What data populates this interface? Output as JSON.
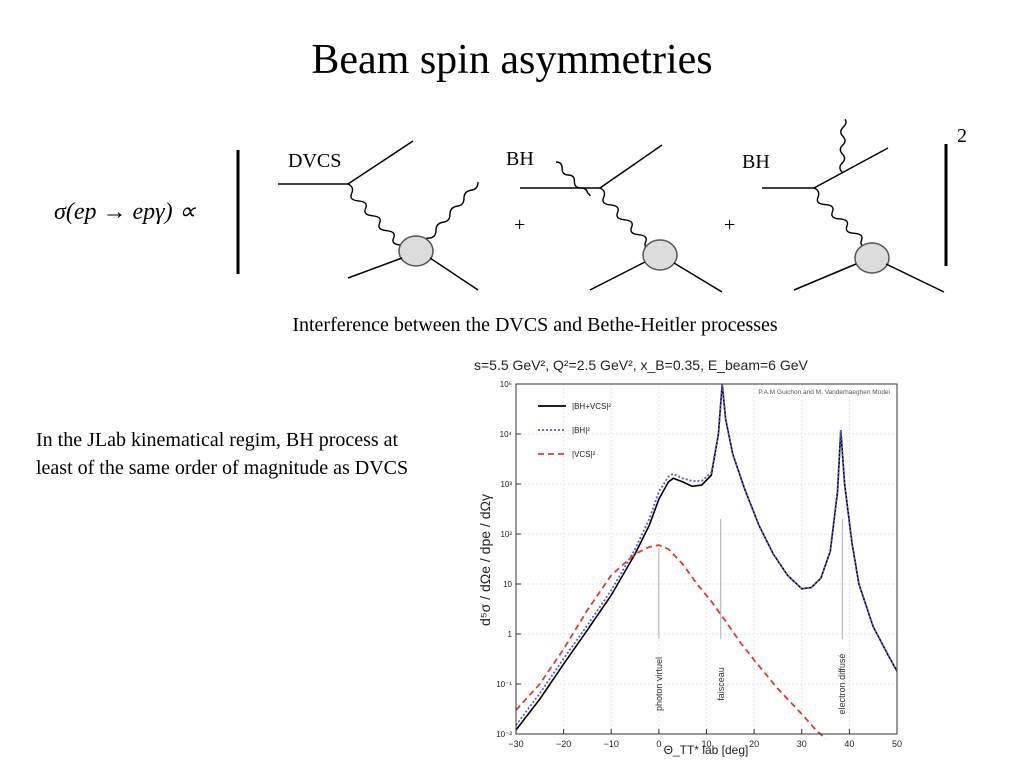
{
  "slide": {
    "title": "Beam spin asymmetries",
    "caption": "Interference between the DVCS and Bethe-Heitler processes",
    "note": "In the JLab kinematical regim, BH process at least of the same order of magnitude as DVCS"
  },
  "formula": {
    "text": "σ(ep → epγ) ∝",
    "exponent": "2",
    "plus": "+",
    "diagram_labels": [
      "DVCS",
      "BH",
      "BH"
    ]
  },
  "chart_data": {
    "type": "line",
    "title": "s=5.5 GeV², Q²=2.5 GeV², x_B=0.35, E_beam=6 GeV",
    "model_note": "P.A.M Guichon and M. Vanderhaeghen Model",
    "xlabel": "Θ_TT* lab [deg]",
    "ylabel": "d⁵σ / dΩe / dpe / dΩγ",
    "xlim": [
      -30,
      50
    ],
    "ylim": [
      0.01,
      100000
    ],
    "yscale": "log",
    "xticks": [
      -30,
      -20,
      -10,
      0,
      10,
      20,
      30,
      40,
      50
    ],
    "yticks": [
      {
        "value": 100000,
        "label": "10⁵"
      },
      {
        "value": 10000,
        "label": "10⁴"
      },
      {
        "value": 1000,
        "label": "10³"
      },
      {
        "value": 100,
        "label": "10²"
      },
      {
        "value": 10,
        "label": "10"
      },
      {
        "value": 1,
        "label": "1"
      },
      {
        "value": 0.1,
        "label": "10⁻¹"
      },
      {
        "value": 0.01,
        "label": "10⁻²"
      }
    ],
    "grid": true,
    "legend_position": "top-left",
    "series": [
      {
        "name": "|BH+VCS|²",
        "color": "#000000",
        "style": "solid",
        "points": [
          [
            -30,
            0.012
          ],
          [
            -25,
            0.05
          ],
          [
            -20,
            0.25
          ],
          [
            -15,
            1.2
          ],
          [
            -10,
            6
          ],
          [
            -5,
            40
          ],
          [
            -2,
            150
          ],
          [
            0,
            500
          ],
          [
            2,
            1100
          ],
          [
            3,
            1300
          ],
          [
            5,
            1100
          ],
          [
            7,
            900
          ],
          [
            9,
            950
          ],
          [
            11,
            1500
          ],
          [
            12.5,
            10000
          ],
          [
            13.3,
            100000
          ],
          [
            14,
            20000
          ],
          [
            15.5,
            4000
          ],
          [
            18,
            800
          ],
          [
            21,
            150
          ],
          [
            24,
            40
          ],
          [
            27,
            15
          ],
          [
            30,
            8
          ],
          [
            32,
            8.5
          ],
          [
            34,
            13
          ],
          [
            36,
            45
          ],
          [
            37.5,
            700
          ],
          [
            38.2,
            12000
          ],
          [
            39,
            1000
          ],
          [
            40.5,
            70
          ],
          [
            42,
            10
          ],
          [
            45,
            1.4
          ],
          [
            48,
            0.4
          ],
          [
            50,
            0.18
          ]
        ]
      },
      {
        "name": "|BH|²",
        "color": "#5a5ad8",
        "style": "dotted",
        "points": [
          [
            -30,
            0.015
          ],
          [
            -25,
            0.065
          ],
          [
            -20,
            0.32
          ],
          [
            -15,
            1.5
          ],
          [
            -10,
            7.5
          ],
          [
            -5,
            50
          ],
          [
            -2,
            200
          ],
          [
            0,
            700
          ],
          [
            2,
            1400
          ],
          [
            3,
            1600
          ],
          [
            5,
            1300
          ],
          [
            7,
            1150
          ],
          [
            9,
            1150
          ],
          [
            11,
            1700
          ],
          [
            12.5,
            10000
          ],
          [
            13.3,
            100000
          ],
          [
            14,
            20000
          ],
          [
            15.5,
            4000
          ],
          [
            18,
            800
          ],
          [
            21,
            150
          ],
          [
            24,
            40
          ],
          [
            27,
            15
          ],
          [
            30,
            8
          ],
          [
            32,
            8.5
          ],
          [
            34,
            13
          ],
          [
            36,
            45
          ],
          [
            37.5,
            700
          ],
          [
            38.2,
            12000
          ],
          [
            39,
            1000
          ],
          [
            40.5,
            70
          ],
          [
            42,
            10
          ],
          [
            45,
            1.4
          ],
          [
            48,
            0.4
          ],
          [
            50,
            0.18
          ]
        ]
      },
      {
        "name": "|VCS|²",
        "color": "#e03a3a",
        "style": "dashed",
        "points": [
          [
            -30,
            0.03
          ],
          [
            -25,
            0.1
          ],
          [
            -20,
            0.5
          ],
          [
            -15,
            3
          ],
          [
            -10,
            15
          ],
          [
            -5,
            40
          ],
          [
            -2,
            55
          ],
          [
            0,
            60
          ],
          [
            2,
            50
          ],
          [
            5,
            25
          ],
          [
            8,
            10
          ],
          [
            11,
            4.5
          ],
          [
            14,
            1.8
          ],
          [
            17,
            0.7
          ],
          [
            20,
            0.3
          ],
          [
            25,
            0.08
          ],
          [
            30,
            0.025
          ],
          [
            33,
            0.012
          ],
          [
            35,
            0.008
          ]
        ]
      }
    ],
    "annotations": [
      {
        "text": "photon virtuel",
        "x": 0
      },
      {
        "text": "faisceau",
        "x": 13
      },
      {
        "text": "electron diffusé",
        "x": 38.5
      }
    ]
  }
}
